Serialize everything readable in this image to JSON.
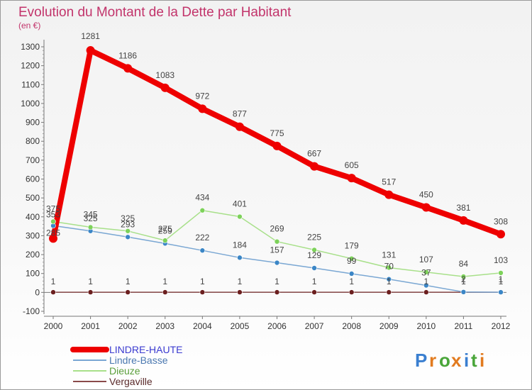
{
  "chart_data": {
    "type": "line",
    "title": "Evolution du Montant de la Dette par Habitant",
    "subtitle": "(en €)",
    "xlabel": "",
    "ylabel": "",
    "x": [
      "2000",
      "2001",
      "2002",
      "2003",
      "2004",
      "2005",
      "2006",
      "2007",
      "2008",
      "2009",
      "2010",
      "2011",
      "2012"
    ],
    "ylim": [
      -100,
      1300
    ],
    "yticks": [
      -100,
      0,
      100,
      200,
      300,
      400,
      500,
      600,
      700,
      800,
      900,
      1000,
      1100,
      1200,
      1300
    ],
    "grid": false,
    "legend_position": "bottom-left",
    "series": [
      {
        "name": "LINDRE-HAUTE",
        "color": "#ee0000",
        "marker": "#ee0000",
        "values": [
          285,
          1281,
          1186,
          1083,
          972,
          877,
          775,
          667,
          605,
          517,
          450,
          381,
          308
        ],
        "labels": [
          "285",
          "1281",
          "1186",
          "1083",
          "972",
          "877",
          "775",
          "667",
          "605",
          "517",
          "450",
          "381",
          "308"
        ]
      },
      {
        "name": "Lindre-Basse",
        "color": "#7aa7d3",
        "marker": "#3b86c6",
        "values": [
          353,
          325,
          293,
          259,
          222,
          184,
          157,
          129,
          99,
          70,
          37,
          2,
          1
        ],
        "labels": [
          "353",
          "325",
          "293",
          "259",
          "222",
          "184",
          "157",
          "129",
          "99",
          "70",
          "37",
          "2",
          "1"
        ]
      },
      {
        "name": "Dieuze",
        "color": "#a8e08a",
        "marker": "#7dd25a",
        "values": [
          375,
          345,
          325,
          275,
          434,
          401,
          269,
          225,
          179,
          131,
          107,
          84,
          103
        ],
        "labels": [
          "375",
          "345",
          "325",
          "275",
          "434",
          "401",
          "269",
          "225",
          "179",
          "131",
          "107",
          "84",
          "103"
        ]
      },
      {
        "name": "Vergaville",
        "color": "#8a4a4a",
        "marker": "#6b1f1f",
        "values": [
          1,
          1,
          1,
          1,
          1,
          1,
          1,
          1,
          1,
          1,
          1,
          1,
          1
        ],
        "labels": [
          "1",
          "1",
          "1",
          "1",
          "1",
          "1",
          "1",
          "1",
          "1",
          "1",
          "1",
          "1",
          "1"
        ]
      }
    ]
  },
  "brand": {
    "letters": [
      "P",
      "r",
      "o",
      "x",
      "i",
      "t",
      "i"
    ],
    "colors": [
      "#3a7fd0",
      "#e27b1f",
      "#4aa63a",
      "#e27b1f",
      "#3a7fd0",
      "#4aa63a",
      "#e27b1f"
    ]
  }
}
